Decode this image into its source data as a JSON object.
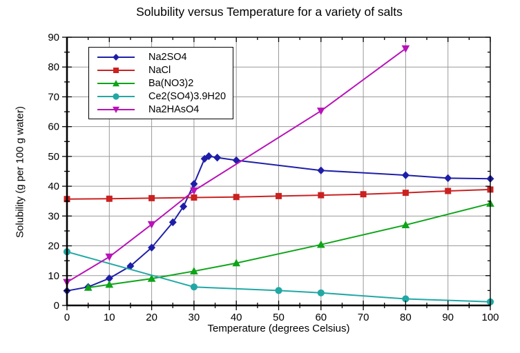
{
  "chart_data": {
    "type": "line",
    "title": "Solubility versus Temperature for a variety of salts",
    "xlabel": "Temperature (degrees Celsius)",
    "ylabel": "Solubility (g per 100 g water)",
    "xlim": [
      0,
      100
    ],
    "ylim": [
      0,
      90
    ],
    "x_ticks": [
      0,
      10,
      20,
      30,
      40,
      50,
      60,
      70,
      80,
      90,
      100
    ],
    "y_ticks": [
      0,
      10,
      20,
      30,
      40,
      50,
      60,
      70,
      80,
      90
    ],
    "minor_tick_interval": 5,
    "grid": true,
    "grid_color": "#999999",
    "legend_position": "upper-left",
    "series": [
      {
        "name": "Na2SO4",
        "color": "#1e1ea8",
        "marker": "diamond",
        "points": [
          [
            0,
            4.9
          ],
          [
            5,
            6.2
          ],
          [
            10,
            9.1
          ],
          [
            15,
            13.2
          ],
          [
            20,
            19.4
          ],
          [
            25,
            27.9
          ],
          [
            27.5,
            33.2
          ],
          [
            30,
            40.8
          ],
          [
            32.5,
            49.2
          ],
          [
            33.5,
            50.1
          ],
          [
            35.5,
            49.6
          ],
          [
            40,
            48.7
          ],
          [
            60,
            45.3
          ],
          [
            80,
            43.7
          ],
          [
            90,
            42.7
          ],
          [
            100,
            42.5
          ]
        ]
      },
      {
        "name": "NaCl",
        "color": "#cb2121",
        "marker": "square",
        "points": [
          [
            0,
            35.7
          ],
          [
            10,
            35.8
          ],
          [
            20,
            36.0
          ],
          [
            30,
            36.2
          ],
          [
            40,
            36.4
          ],
          [
            50,
            36.7
          ],
          [
            60,
            37.0
          ],
          [
            70,
            37.3
          ],
          [
            80,
            37.8
          ],
          [
            90,
            38.4
          ],
          [
            100,
            38.9
          ]
        ]
      },
      {
        "name": "Ba(NO3)2",
        "color": "#0da417",
        "marker": "triangle-up",
        "points": [
          [
            5,
            6.0
          ],
          [
            10,
            7.0
          ],
          [
            20,
            9.0
          ],
          [
            30,
            11.5
          ],
          [
            40,
            14.2
          ],
          [
            60,
            20.4
          ],
          [
            80,
            27.0
          ],
          [
            100,
            34.2
          ]
        ]
      },
      {
        "name": "Ce2(SO4)3.9H20",
        "color": "#21a8a5",
        "marker": "circle",
        "points": [
          [
            0,
            18.0
          ],
          [
            30,
            6.2
          ],
          [
            50,
            5.0
          ],
          [
            60,
            4.2
          ],
          [
            80,
            2.2
          ],
          [
            100,
            1.2
          ]
        ]
      },
      {
        "name": "Na2HAsO4",
        "color": "#b812b8",
        "marker": "triangle-down",
        "points": [
          [
            0,
            7.8
          ],
          [
            10,
            16.3
          ],
          [
            20,
            27.2
          ],
          [
            30,
            38.5
          ],
          [
            60,
            65.3
          ],
          [
            80,
            86.2
          ]
        ]
      }
    ]
  }
}
